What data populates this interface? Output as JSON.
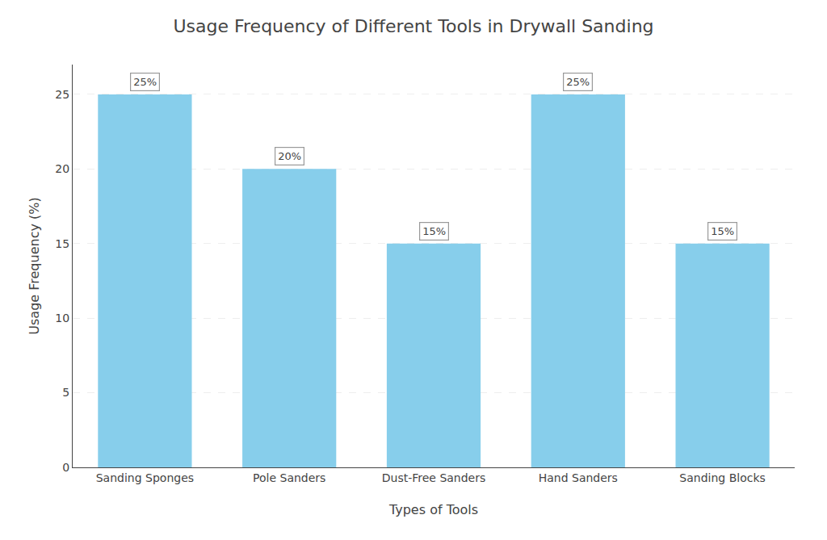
{
  "chart_data": {
    "type": "bar",
    "title": "Usage Frequency of Different Tools in Drywall Sanding",
    "xlabel": "Types of Tools",
    "ylabel": "Usage Frequency (%)",
    "categories": [
      "Sanding Sponges",
      "Pole Sanders",
      "Dust-Free Sanders",
      "Hand Sanders",
      "Sanding Blocks"
    ],
    "values": [
      25,
      20,
      15,
      25,
      15
    ],
    "value_labels": [
      "25%",
      "20%",
      "15%",
      "25%",
      "15%"
    ],
    "data_labels": true,
    "color": "#87CEEB",
    "ylim": [
      0,
      27
    ],
    "yticks": [
      0,
      5,
      10,
      15,
      20,
      25
    ],
    "grid": true
  }
}
